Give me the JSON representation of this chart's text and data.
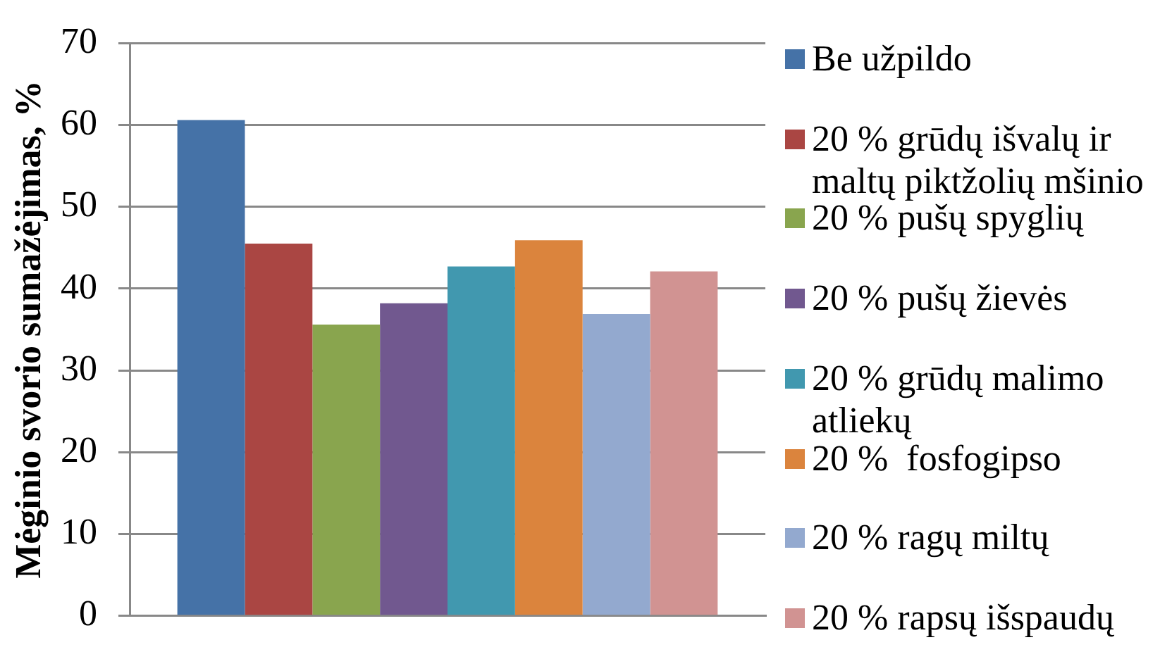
{
  "chart_data": {
    "type": "bar",
    "ylabel": "Mėginio svorio sumažėjimas, %",
    "categories": [
      null
    ],
    "series": [
      {
        "name": "Be užpildo",
        "color": "#4572a7",
        "values": [
          60.6
        ]
      },
      {
        "name": "20 % grūdų išvalų ir maltų piktžolių mšinio",
        "color": "#aa4643",
        "values": [
          45.5
        ]
      },
      {
        "name": "20 % pušų spyglių",
        "color": "#89a54e",
        "values": [
          35.6
        ]
      },
      {
        "name": "20 % pušų žievės",
        "color": "#71588f",
        "values": [
          38.2
        ]
      },
      {
        "name": "20 % grūdų malimo atliekų",
        "color": "#4198af",
        "values": [
          42.7
        ]
      },
      {
        "name": "20 %  fosfogipso",
        "color": "#db843d",
        "values": [
          45.9
        ]
      },
      {
        "name": "20 % ragų miltų",
        "color": "#93a9cf",
        "values": [
          36.9
        ]
      },
      {
        "name": "20 % rapsų išspaudų",
        "color": "#d19392",
        "values": [
          42.1
        ]
      }
    ],
    "ylim": [
      0,
      70
    ],
    "yticks": [
      0,
      10,
      20,
      30,
      40,
      50,
      60,
      70
    ],
    "grid": "y",
    "legend": "right"
  }
}
